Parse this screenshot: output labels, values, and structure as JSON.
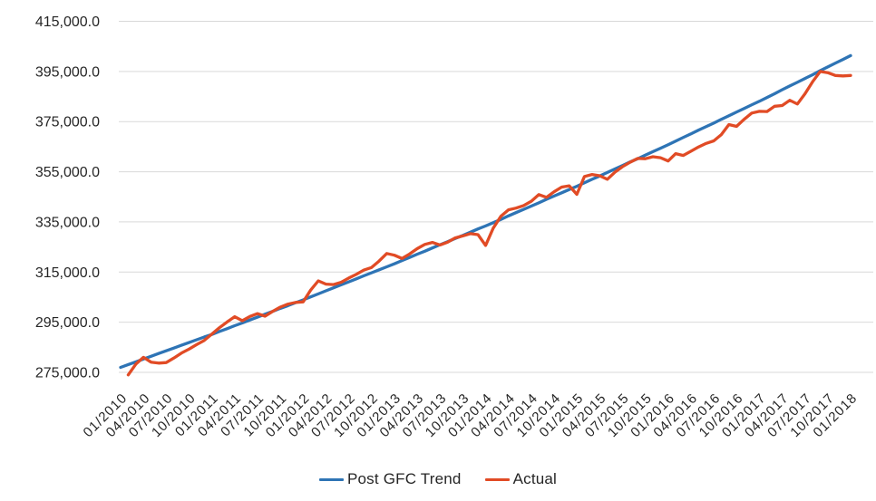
{
  "chart_data": {
    "type": "line",
    "title": "",
    "grid": true,
    "legend_position": "bottom",
    "x_axis": {
      "tick_every": 3,
      "categories": [
        "01/2010",
        "02/2010",
        "03/2010",
        "04/2010",
        "05/2010",
        "06/2010",
        "07/2010",
        "08/2010",
        "09/2010",
        "10/2010",
        "11/2010",
        "12/2010",
        "01/2011",
        "02/2011",
        "03/2011",
        "04/2011",
        "05/2011",
        "06/2011",
        "07/2011",
        "08/2011",
        "09/2011",
        "10/2011",
        "11/2011",
        "12/2011",
        "01/2012",
        "02/2012",
        "03/2012",
        "04/2012",
        "05/2012",
        "06/2012",
        "07/2012",
        "08/2012",
        "09/2012",
        "10/2012",
        "11/2012",
        "12/2012",
        "01/2013",
        "02/2013",
        "03/2013",
        "04/2013",
        "05/2013",
        "06/2013",
        "07/2013",
        "08/2013",
        "09/2013",
        "10/2013",
        "11/2013",
        "12/2013",
        "01/2014",
        "02/2014",
        "03/2014",
        "04/2014",
        "05/2014",
        "06/2014",
        "07/2014",
        "08/2014",
        "09/2014",
        "10/2014",
        "11/2014",
        "12/2014",
        "01/2015",
        "02/2015",
        "03/2015",
        "04/2015",
        "05/2015",
        "06/2015",
        "07/2015",
        "08/2015",
        "09/2015",
        "10/2015",
        "11/2015",
        "12/2015",
        "01/2016",
        "02/2016",
        "03/2016",
        "04/2016",
        "05/2016",
        "06/2016",
        "07/2016",
        "08/2016",
        "09/2016",
        "10/2016",
        "11/2016",
        "12/2016",
        "01/2017",
        "02/2017",
        "03/2017",
        "04/2017",
        "05/2017",
        "06/2017",
        "07/2017",
        "08/2017",
        "09/2017",
        "10/2017",
        "11/2017",
        "12/2017",
        "01/2018"
      ]
    },
    "y_axis": {
      "min": 275000,
      "max": 415000,
      "step": 20000,
      "ticks": [
        {
          "value": 415000,
          "label": "415,000.0"
        },
        {
          "value": 395000,
          "label": "395,000.0"
        },
        {
          "value": 375000,
          "label": "375,000.0"
        },
        {
          "value": 355000,
          "label": "355,000.0"
        },
        {
          "value": 335000,
          "label": "335,000.0"
        },
        {
          "value": 315000,
          "label": "315,000.0"
        },
        {
          "value": 295000,
          "label": "295,000.0"
        },
        {
          "value": 275000,
          "label": "275,000.0"
        }
      ]
    },
    "series": [
      {
        "name": "Post GFC Trend",
        "color": "#2E74B5",
        "values": [
          277000,
          278100,
          279200,
          280300,
          281400,
          282500,
          283600,
          284700,
          285800,
          286900,
          288000,
          289100,
          290100,
          291300,
          292400,
          293600,
          294700,
          295900,
          297000,
          298200,
          299300,
          300500,
          301600,
          302800,
          303900,
          305100,
          306300,
          307500,
          308700,
          309900,
          311100,
          312300,
          313500,
          314700,
          315900,
          317100,
          318300,
          319600,
          320800,
          322100,
          323300,
          324600,
          325900,
          327100,
          328400,
          329600,
          330900,
          332200,
          333400,
          334700,
          336000,
          337400,
          338700,
          340000,
          341300,
          342600,
          344000,
          345300,
          346600,
          347900,
          349200,
          350600,
          352000,
          353300,
          354700,
          356100,
          357500,
          358900,
          360200,
          361600,
          363000,
          364400,
          365800,
          367200,
          368700,
          370100,
          371600,
          373000,
          374400,
          375900,
          377300,
          378800,
          380200,
          381700,
          383100,
          384600,
          386100,
          387700,
          389200,
          390700,
          392200,
          393700,
          395300,
          396800,
          398300,
          399800,
          401300
        ]
      },
      {
        "name": "Actual",
        "color": "#E14B25",
        "values": [
          null,
          274000,
          278300,
          281000,
          279100,
          278700,
          278900,
          280700,
          282700,
          284300,
          286100,
          287700,
          290300,
          292800,
          295100,
          297200,
          295600,
          297300,
          298400,
          297400,
          299300,
          301000,
          302200,
          302900,
          303100,
          307800,
          311500,
          310200,
          310000,
          310900,
          312600,
          314100,
          315800,
          316800,
          319400,
          322400,
          321700,
          320400,
          322200,
          324300,
          326000,
          326800,
          325800,
          326900,
          328600,
          329400,
          330300,
          329900,
          325600,
          332500,
          337200,
          339800,
          340500,
          341500,
          343200,
          345900,
          344800,
          347000,
          348900,
          349400,
          346000,
          353100,
          353900,
          353400,
          352000,
          354800,
          357000,
          358800,
          360300,
          360200,
          361000,
          360600,
          359300,
          362200,
          361500,
          363200,
          364900,
          366300,
          367300,
          369800,
          373800,
          373100,
          375900,
          378400,
          379100,
          379000,
          381100,
          381400,
          383500,
          382000,
          386100,
          390900,
          395000,
          394500,
          393400,
          393200,
          393400
        ]
      }
    ],
    "style": {
      "gridline_color": "#D9D9D9",
      "tick_label_color": "#262626",
      "background": "#FFFFFF"
    }
  }
}
